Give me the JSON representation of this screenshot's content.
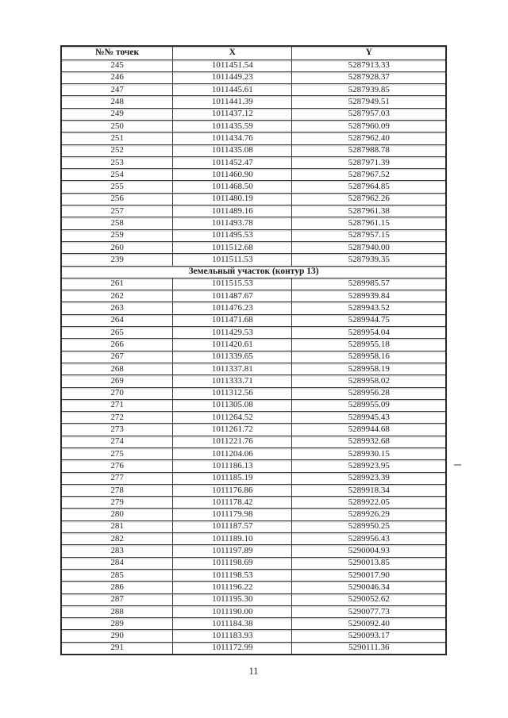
{
  "page": {
    "number": "11"
  },
  "table": {
    "headers": [
      "№№ точек",
      "X",
      "Y"
    ],
    "sections": [
      {
        "title": "",
        "rows": [
          [
            "245",
            "1011451.54",
            "5287913.33"
          ],
          [
            "246",
            "1011449.23",
            "5287928.37"
          ],
          [
            "247",
            "1011445.61",
            "5287939.85"
          ],
          [
            "248",
            "1011441.39",
            "5287949.51"
          ],
          [
            "249",
            "1011437.12",
            "5287957.03"
          ],
          [
            "250",
            "1011435.59",
            "5287960.09"
          ],
          [
            "251",
            "1011434.76",
            "5287962.40"
          ],
          [
            "252",
            "1011435.08",
            "5287988.78"
          ],
          [
            "253",
            "1011452.47",
            "5287971.39"
          ],
          [
            "254",
            "1011460.90",
            "5287967.52"
          ],
          [
            "255",
            "1011468.50",
            "5287964.85"
          ],
          [
            "256",
            "1011480.19",
            "5287962.26"
          ],
          [
            "257",
            "1011489.16",
            "5287961.38"
          ],
          [
            "258",
            "1011493.78",
            "5287961.15"
          ],
          [
            "259",
            "1011495.53",
            "5287957.15"
          ],
          [
            "260",
            "1011512.68",
            "5287940.00"
          ],
          [
            "239",
            "1011511.53",
            "5287939.35"
          ]
        ]
      },
      {
        "title": "Земельный участок (контур 13)",
        "rows": [
          [
            "261",
            "1011515.53",
            "5289985.57"
          ],
          [
            "262",
            "1011487.67",
            "5289939.84"
          ],
          [
            "263",
            "1011476.23",
            "5289943.52"
          ],
          [
            "264",
            "1011471.68",
            "5289944.75"
          ],
          [
            "265",
            "1011429.53",
            "5289954.04"
          ],
          [
            "266",
            "1011420.61",
            "5289955.18"
          ],
          [
            "267",
            "1011339.65",
            "5289958.16"
          ],
          [
            "268",
            "1011337.81",
            "5289958.19"
          ],
          [
            "269",
            "1011333.71",
            "5289958.02"
          ],
          [
            "270",
            "1011312.56",
            "5289956.28"
          ],
          [
            "271",
            "1011305.08",
            "5289955.09"
          ],
          [
            "272",
            "1011264.52",
            "5289945.43"
          ],
          [
            "273",
            "1011261.72",
            "5289944.68"
          ],
          [
            "274",
            "1011221.76",
            "5289932.68"
          ],
          [
            "275",
            "1011204.06",
            "5289930.15"
          ],
          [
            "276",
            "1011186.13",
            "5289923.95"
          ],
          [
            "277",
            "1011185.19",
            "5289923.39"
          ],
          [
            "278",
            "1011176.86",
            "5289918.34"
          ],
          [
            "279",
            "1011178.42",
            "5289922.05"
          ],
          [
            "280",
            "1011179.98",
            "5289926.29"
          ],
          [
            "281",
            "1011187.57",
            "5289950.25"
          ],
          [
            "282",
            "1011189.10",
            "5289956.43"
          ],
          [
            "283",
            "1011197.89",
            "5290004.93"
          ],
          [
            "284",
            "1011198.69",
            "5290013.85"
          ],
          [
            "285",
            "1011198.53",
            "5290017.90"
          ],
          [
            "286",
            "1011196.22",
            "5290046.34"
          ],
          [
            "287",
            "1011195.30",
            "5290052.62"
          ],
          [
            "288",
            "1011190.00",
            "5290077.73"
          ],
          [
            "289",
            "1011184.38",
            "5290092.40"
          ],
          [
            "290",
            "1011183.93",
            "5290093.17"
          ],
          [
            "291",
            "1011172.99",
            "5290111.36"
          ]
        ]
      }
    ]
  }
}
